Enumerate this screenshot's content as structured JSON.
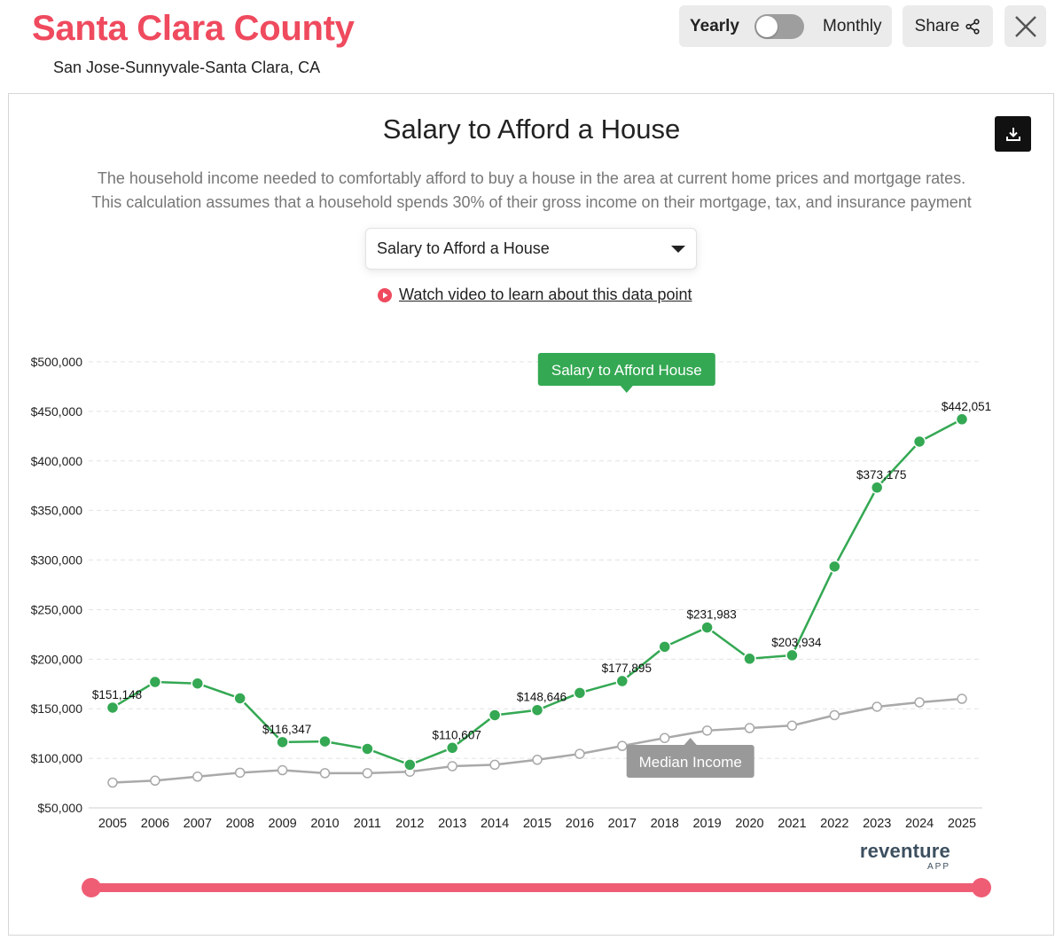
{
  "header": {
    "title": "Santa Clara County",
    "subtitle": "San Jose-Sunnyvale-Santa Clara, CA"
  },
  "toggle": {
    "left_label": "Yearly",
    "right_label": "Monthly",
    "selected": "Yearly"
  },
  "actions": {
    "share_label": "Share",
    "close_icon": "close-icon",
    "share_icon": "share-icon",
    "download_icon": "download-icon"
  },
  "chart_panel": {
    "title": "Salary to Afford a House",
    "description_line1": "The household income needed to comfortably afford to buy a house in the area at current home prices and mortgage rates.",
    "description_line2": "This calculation assumes that a household spends 30% of their gross income on their mortgage, tax, and insurance payment",
    "select_value": "Salary to Afford a House",
    "video_link": "Watch video to learn about this data point"
  },
  "chart_data": {
    "type": "line",
    "title": "Salary to Afford a House",
    "categories": [
      "2005",
      "2006",
      "2007",
      "2008",
      "2009",
      "2010",
      "2011",
      "2012",
      "2013",
      "2014",
      "2015",
      "2016",
      "2017",
      "2018",
      "2019",
      "2020",
      "2021",
      "2022",
      "2023",
      "2024",
      "2025"
    ],
    "ylim": [
      50000,
      500000
    ],
    "yticks": [
      50000,
      100000,
      150000,
      200000,
      250000,
      300000,
      350000,
      400000,
      450000,
      500000
    ],
    "ytick_labels": [
      "$50,000",
      "$100,000",
      "$150,000",
      "$200,000",
      "$250,000",
      "$300,000",
      "$350,000",
      "$400,000",
      "$450,000",
      "$500,000"
    ],
    "grid": true,
    "series": [
      {
        "name": "Salary to Afford House",
        "color": "#34a853",
        "values": [
          151148,
          177000,
          175500,
          160500,
          116347,
          117000,
          109500,
          93500,
          110607,
          143500,
          148646,
          166000,
          177895,
          212500,
          231983,
          200500,
          203934,
          293500,
          373175,
          419500,
          442051
        ],
        "labels": {
          "2005": "$151,148",
          "2009": "$116,347",
          "2013": "$110,607",
          "2015": "$148,646",
          "2017": "$177,895",
          "2019": "$231,983",
          "2021": "$203,934",
          "2023": "$373,175",
          "2025": "$442,051"
        },
        "callout": "Salary to Afford House",
        "callout_year": "2017"
      },
      {
        "name": "Median Income",
        "color": "#a9a9a9",
        "values": [
          75500,
          77500,
          81500,
          85500,
          88000,
          85000,
          85000,
          86500,
          92000,
          93500,
          98500,
          104500,
          112500,
          120500,
          128000,
          130500,
          133000,
          143500,
          152000,
          156500,
          160000
        ],
        "callout": "Median Income",
        "callout_year": "2018"
      }
    ],
    "range_slider": {
      "start": "2005",
      "end": "2025",
      "color": "#ef5d75"
    }
  },
  "branding": {
    "logo_main": "reventure",
    "logo_sub": "APP"
  }
}
